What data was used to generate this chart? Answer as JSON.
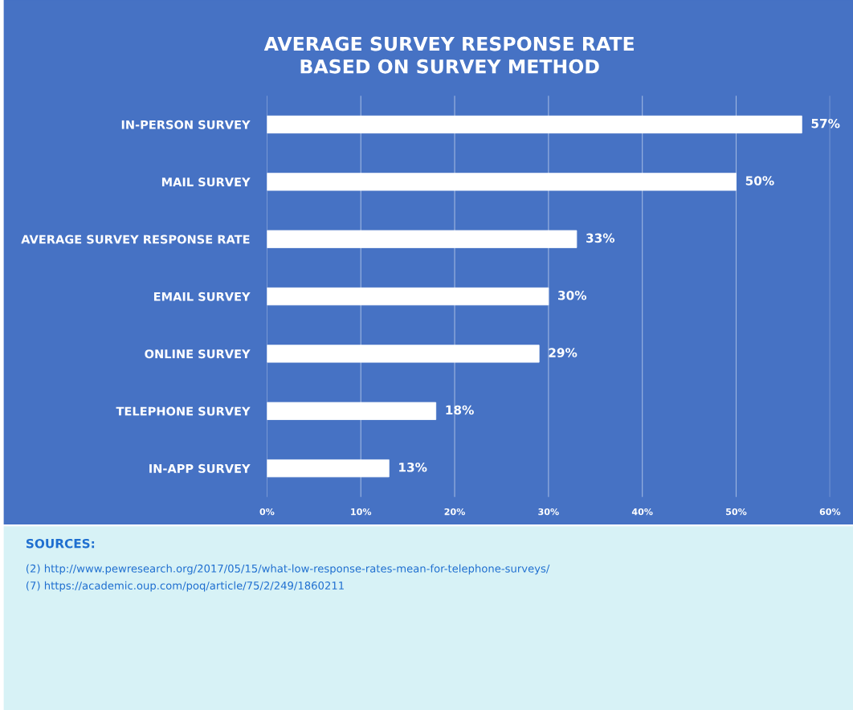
{
  "chart_data": {
    "type": "bar",
    "orientation": "horizontal",
    "title": "AVERAGE SURVEY RESPONSE RATE\nBASED ON SURVEY METHOD",
    "categories": [
      "IN-PERSON SURVEY",
      "MAIL SURVEY",
      "AVERAGE SURVEY RESPONSE RATE",
      "EMAIL SURVEY",
      "ONLINE SURVEY",
      "TELEPHONE SURVEY",
      "IN-APP SURVEY"
    ],
    "values": [
      57,
      50,
      33,
      30,
      29,
      18,
      13
    ],
    "value_labels": [
      "57%",
      "50%",
      "33%",
      "30%",
      "29%",
      "18%",
      "13%"
    ],
    "color": "#ffffff",
    "xlim": [
      0,
      60
    ],
    "xticks": [
      {
        "value": 0,
        "label": "0%"
      },
      {
        "value": 10,
        "label": "10%"
      },
      {
        "value": 20,
        "label": "20%"
      },
      {
        "value": 30,
        "label": "30%"
      },
      {
        "value": 40,
        "label": "40%"
      },
      {
        "value": 50,
        "label": "50%"
      },
      {
        "value": 60,
        "label": "60%"
      }
    ],
    "grid": "x",
    "annotations": [
      "SOURCES:",
      "(2) http://www.pewresearch.org/2017/05/15/what-low-response-rates-mean-for-telephone-surveys/",
      "(7) https://academic.oup.com/poq/article/75/2/249/1860211"
    ]
  }
}
